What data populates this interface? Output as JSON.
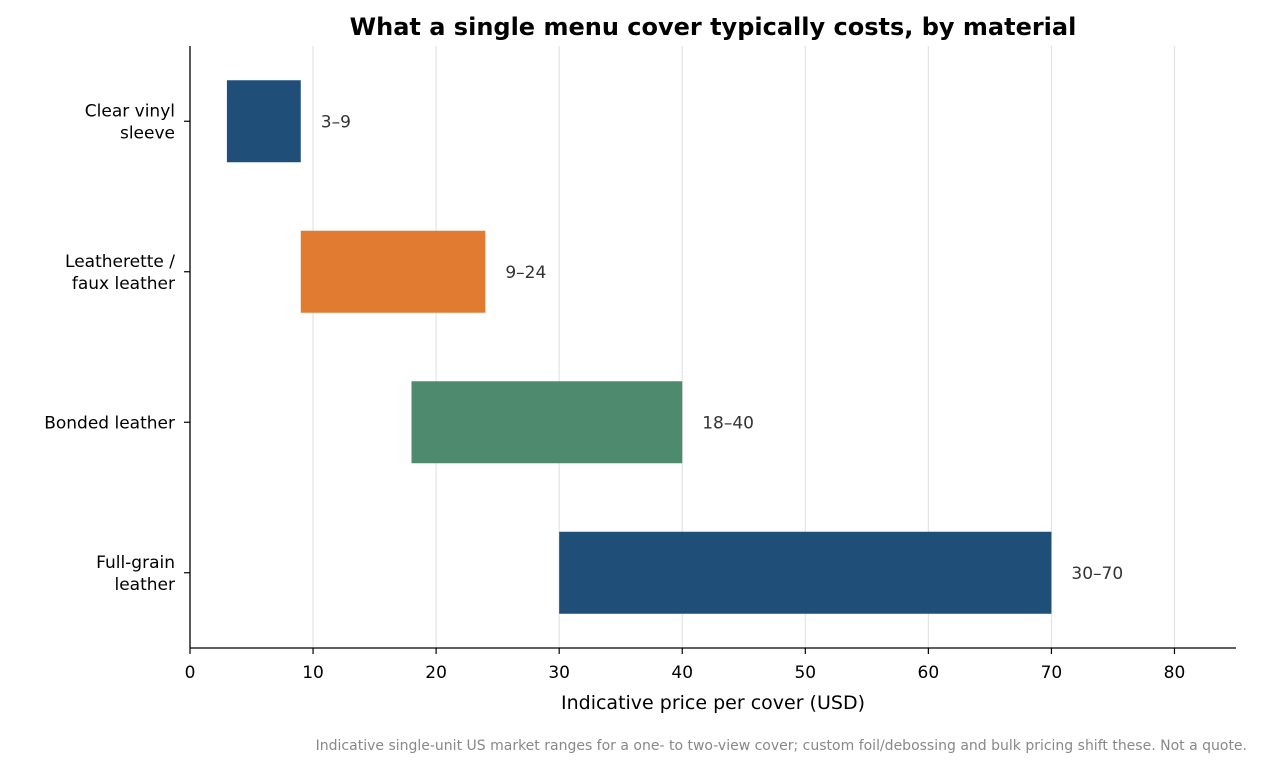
{
  "chart_data": {
    "type": "bar",
    "orientation": "horizontal",
    "style": "floating-range",
    "title": "What a single menu cover typically costs, by material",
    "xlabel": "Indicative price per cover (USD)",
    "ylabel": "",
    "xlim": [
      0,
      85
    ],
    "xticks": [
      0,
      10,
      20,
      30,
      40,
      50,
      60,
      70,
      80
    ],
    "grid": "vertical",
    "legend": "none",
    "categories": [
      [
        "Clear vinyl",
        "sleeve"
      ],
      [
        "Leatherette /",
        "faux leather"
      ],
      [
        "Bonded leather"
      ],
      [
        "Full-grain",
        "leather"
      ]
    ],
    "ranges": [
      {
        "low": 3,
        "high": 9,
        "label": "3–9",
        "color": "#1f4e79"
      },
      {
        "low": 9,
        "high": 24,
        "label": "9–24",
        "color": "#e07b31"
      },
      {
        "low": 18,
        "high": 40,
        "label": "18–40",
        "color": "#4e8b6e"
      },
      {
        "low": 30,
        "high": 70,
        "label": "30–70",
        "color": "#1f4e79"
      }
    ],
    "footnote": "Indicative single-unit US market ranges for a one- to two-view cover; custom foil/debossing and bulk pricing shift these. Not a quote."
  }
}
